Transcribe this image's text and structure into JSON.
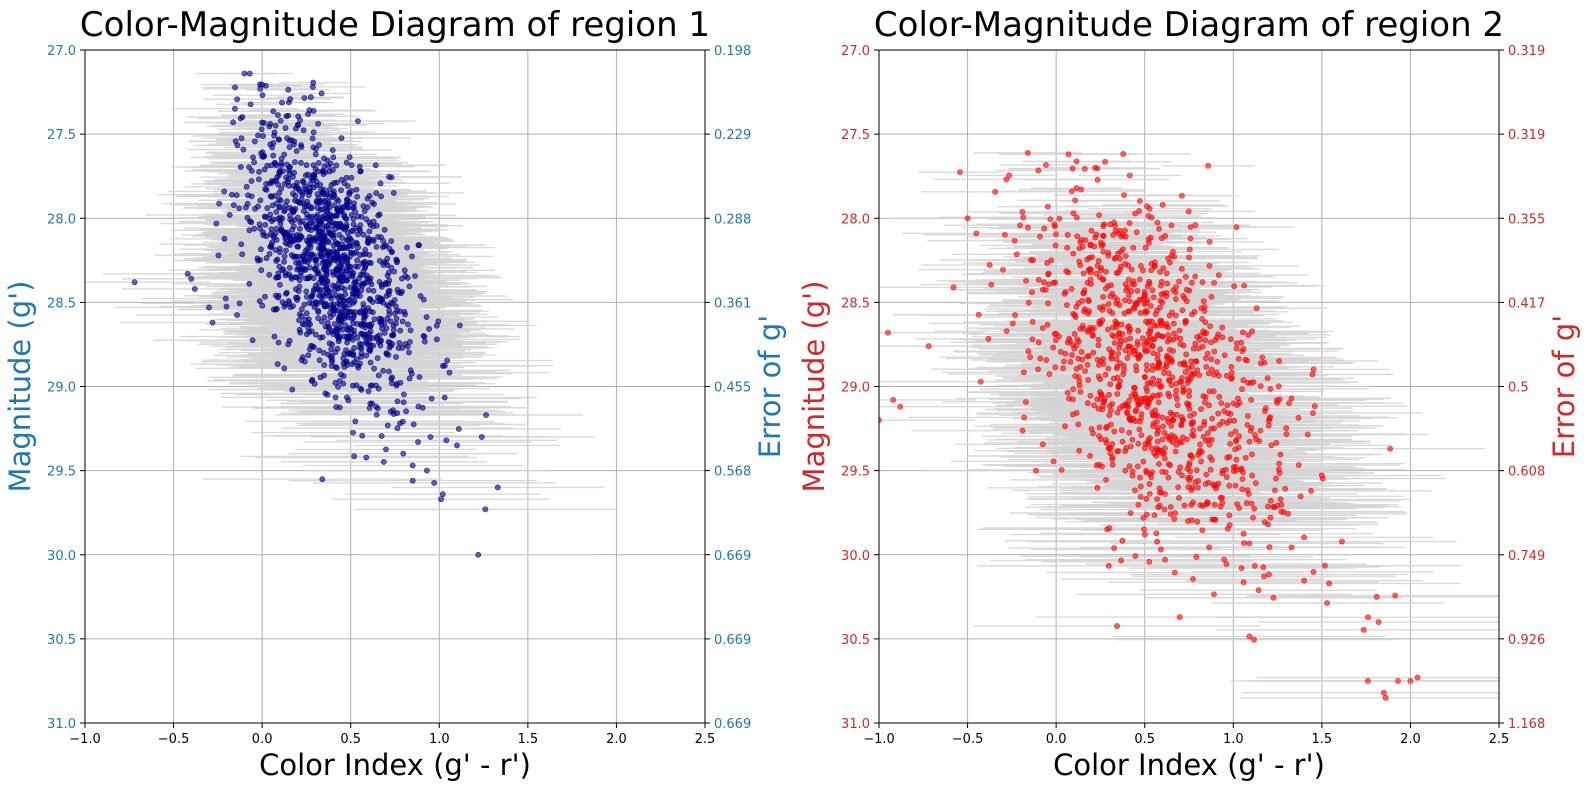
{
  "chart_data": [
    {
      "type": "scatter",
      "title": "Color-Magnitude Diagram of region 1",
      "xlabel": "Color Index (g' - r')",
      "ylabel": "Magnitude (g')",
      "ylabel_right": "Error of g'",
      "xlim": [
        -1.0,
        2.5
      ],
      "ylim": [
        31.0,
        27.0
      ],
      "y_inverted": true,
      "x_ticks": [
        "−1.0",
        "−0.5",
        "0.0",
        "0.5",
        "1.0",
        "1.5",
        "2.0",
        "2.5"
      ],
      "y_ticks": [
        "27.0",
        "27.5",
        "28.0",
        "28.5",
        "29.0",
        "29.5",
        "30.0",
        "30.5",
        "31.0"
      ],
      "y_ticks_right": [
        "0.198",
        "0.229",
        "0.288",
        "0.361",
        "0.455",
        "0.568",
        "0.669",
        "0.669",
        "0.669"
      ],
      "grid": true,
      "point_color": "#00008b",
      "axis_color": "#1f77b4",
      "errorbar_color": "#d3d3d3",
      "series": [
        {
          "cloud": {
            "n": 1300,
            "mag_range": [
              27.18,
              29.7
            ],
            "color_center_at_27": 0.0,
            "color_slope": 0.3,
            "color_spread": 0.22,
            "mag_peak": 28.25,
            "mag_sigma": 0.45
          },
          "x": [
            -0.72,
            -0.42,
            -0.4,
            -0.38,
            -0.3,
            -0.28,
            -0.1,
            -0.07,
            0.95,
            0.88,
            1.04,
            1.1,
            1.24,
            1.02,
            1.01,
            1.26,
            1.33,
            1.22,
            0.93,
            0.85,
            0.85
          ],
          "y": [
            28.38,
            28.33,
            28.36,
            28.42,
            28.53,
            28.62,
            27.14,
            27.14,
            29.3,
            29.33,
            29.32,
            29.35,
            29.3,
            29.64,
            29.67,
            29.73,
            29.6,
            30.0,
            29.5,
            29.47,
            29.56
          ]
        }
      ]
    },
    {
      "type": "scatter",
      "title": "Color-Magnitude Diagram of region 2",
      "xlabel": "Color Index (g' - r')",
      "ylabel": "Magnitude (g')",
      "ylabel_right": "Error of g'",
      "xlim": [
        -1.0,
        2.5
      ],
      "ylim": [
        31.0,
        27.0
      ],
      "y_inverted": true,
      "x_ticks": [
        "−1.0",
        "−0.5",
        "0.0",
        "0.5",
        "1.0",
        "1.5",
        "2.0",
        "2.5"
      ],
      "y_ticks": [
        "27.0",
        "27.5",
        "28.0",
        "28.5",
        "29.0",
        "29.5",
        "30.0",
        "30.5",
        "31.0"
      ],
      "y_ticks_right": [
        "0.319",
        "0.319",
        "0.355",
        "0.417",
        "0.5",
        "0.608",
        "0.749",
        "0.926",
        "1.168"
      ],
      "grid": true,
      "point_color": "#ff0000",
      "axis_color": "#d62728",
      "errorbar_color": "#d3d3d3",
      "series": [
        {
          "cloud": {
            "n": 1100,
            "mag_range": [
              27.6,
              30.9
            ],
            "color_center_at_27": -0.1,
            "color_slope": 0.35,
            "color_spread": 0.33,
            "mag_peak": 28.9,
            "mag_sigma": 0.55
          },
          "x": [
            -0.95,
            -0.92,
            -0.88,
            -0.72,
            -1.0,
            -0.5,
            1.76,
            1.82,
            1.93,
            2.0,
            2.04,
            1.85,
            1.86,
            1.81,
            0.07,
            0.22,
            -0.45
          ],
          "y": [
            28.68,
            29.08,
            29.12,
            28.76,
            29.2,
            28.0,
            30.75,
            30.4,
            30.75,
            30.75,
            30.73,
            30.82,
            30.85,
            30.25,
            27.62,
            27.7,
            28.09
          ]
        }
      ]
    }
  ]
}
